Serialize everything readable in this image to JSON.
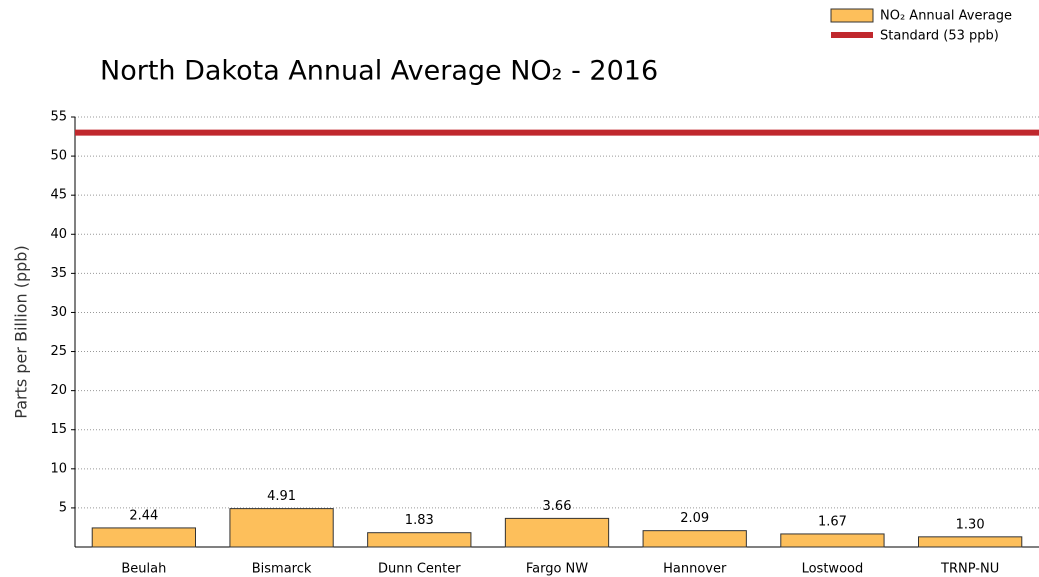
{
  "chart_data": {
    "type": "bar",
    "title": "North Dakota Annual Average NO₂ - 2016",
    "y_label": "Parts per Billion (ppb)",
    "categories": [
      "Beulah",
      "Bismarck",
      "Dunn Center",
      "Fargo NW",
      "Hannover",
      "Lostwood",
      "TRNP-NU"
    ],
    "series": [
      {
        "name": "NO₂ Annual Average",
        "color": "#fdbf5b",
        "values": [
          2.44,
          4.91,
          1.83,
          3.66,
          2.09,
          1.67,
          1.3
        ],
        "value_labels": [
          "2.44",
          "4.91",
          "1.83",
          "3.66",
          "2.09",
          "1.67",
          "1.30"
        ]
      }
    ],
    "standard": {
      "name": "Standard (53 ppb)",
      "value": 53,
      "color": "#c0282d"
    },
    "ylim": [
      0,
      55
    ],
    "yticks": [
      5,
      10,
      15,
      20,
      25,
      30,
      35,
      40,
      45,
      50,
      55
    ],
    "grid": true,
    "legend": "top-right"
  }
}
